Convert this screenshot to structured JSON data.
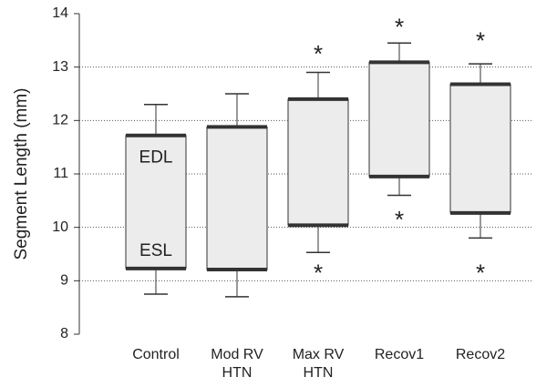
{
  "chart_data": {
    "type": "box",
    "y_label": "Segment Length (mm)",
    "categories": [
      "Control",
      "Mod RV HTN",
      "Max RV HTN",
      "Recov1",
      "Recov2"
    ],
    "edl": [
      11.72,
      11.88,
      12.4,
      13.09,
      12.68
    ],
    "esl": [
      9.23,
      9.21,
      10.04,
      10.95,
      10.27
    ],
    "whisker_high": [
      12.3,
      12.5,
      12.9,
      13.45,
      13.06
    ],
    "whisker_low": [
      8.75,
      8.7,
      9.53,
      10.6,
      9.8
    ],
    "ylim": [
      8,
      14
    ],
    "yticks": [
      8,
      9,
      10,
      11,
      12,
      13,
      14
    ],
    "grid": true,
    "box_color": "#ececec",
    "edge_color": "#333333",
    "annotations": [
      {
        "text": "EDL",
        "category": 0,
        "y": 11.3
      },
      {
        "text": "ESL",
        "category": 0,
        "y": 9.55
      },
      {
        "text": "*",
        "category": 2,
        "y": 13.3
      },
      {
        "text": "*",
        "category": 2,
        "y": 9.2
      },
      {
        "text": "*",
        "category": 3,
        "y": 13.8
      },
      {
        "text": "*",
        "category": 3,
        "y": 10.2
      },
      {
        "text": "*",
        "category": 4,
        "y": 13.55
      },
      {
        "text": "*",
        "category": 4,
        "y": 9.2
      }
    ]
  }
}
